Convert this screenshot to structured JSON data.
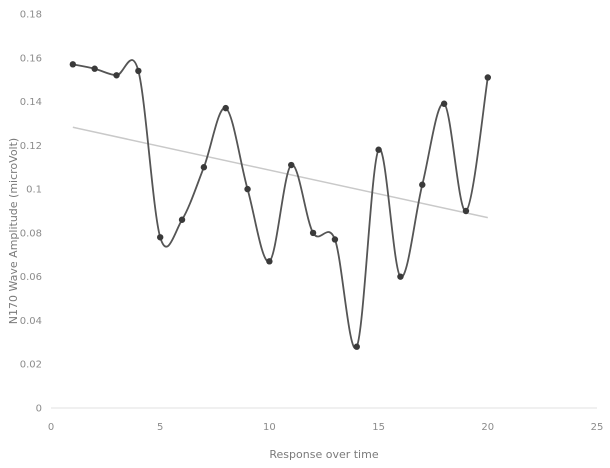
{
  "chart_data": {
    "type": "line",
    "title": "",
    "xlabel": "Response over time",
    "ylabel": "N170 Wave Amplitude (microVolt)",
    "xlim": [
      0,
      25
    ],
    "ylim": [
      0,
      0.18
    ],
    "x_ticks": [
      0,
      5,
      10,
      15,
      20,
      25
    ],
    "x_tick_labels": [
      "0",
      "5",
      "10",
      "15",
      "20",
      "25"
    ],
    "y_ticks": [
      0,
      0.02,
      0.04,
      0.06,
      0.08,
      0.1,
      0.12,
      0.14,
      0.16,
      0.18
    ],
    "y_tick_labels": [
      "0",
      "0.02",
      "0.04",
      "0.06",
      "0.08",
      "0.1",
      "0.12",
      "0.14",
      "0.16",
      "0.18"
    ],
    "grid": false,
    "legend": "none",
    "series": [
      {
        "points": [
          [
            1,
            0.157
          ],
          [
            2,
            0.155
          ],
          [
            3,
            0.152
          ],
          [
            4,
            0.154
          ],
          [
            5,
            0.078
          ],
          [
            6,
            0.086
          ],
          [
            7,
            0.11
          ],
          [
            8,
            0.137
          ],
          [
            9,
            0.1
          ],
          [
            10,
            0.067
          ],
          [
            11,
            0.111
          ],
          [
            12,
            0.08
          ],
          [
            13,
            0.077
          ],
          [
            14,
            0.028
          ],
          [
            15,
            0.118
          ],
          [
            16,
            0.06
          ],
          [
            17,
            0.102
          ],
          [
            18,
            0.139
          ],
          [
            19,
            0.09
          ],
          [
            20,
            0.151
          ]
        ],
        "style": "smooth",
        "markers": true,
        "color": "#555555"
      }
    ],
    "trendline": {
      "type": "linear",
      "x_range": [
        1,
        20
      ],
      "color": "#c9c9c9"
    }
  }
}
